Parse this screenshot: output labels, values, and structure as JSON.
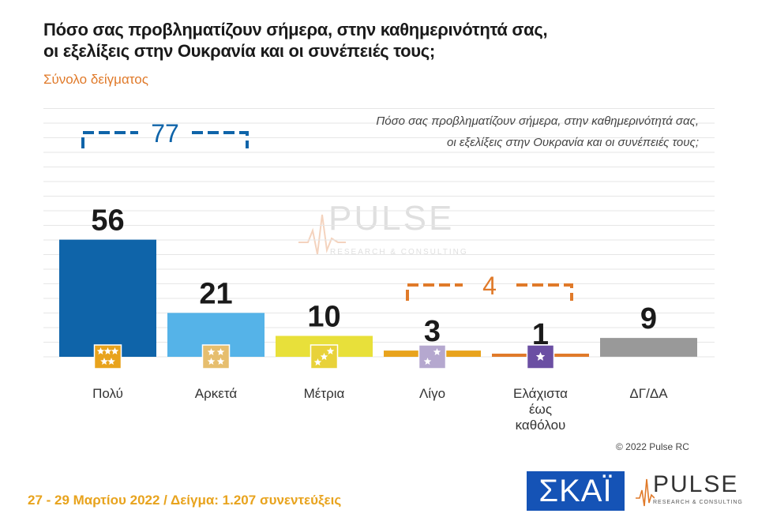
{
  "header": {
    "title_line1": "Πόσο σας προβληματίζουν σήμερα, στην καθημερινότητά σας,",
    "title_line2": "οι εξελίξεις στην Ουκρανία και οι συνέπειές τους;",
    "subtitle": "Σύνολο δείγματος"
  },
  "question": {
    "line1": "Πόσο σας προβληματίζουν σήμερα, στην καθημερινότητά σας,",
    "line2": "οι εξελίξεις στην Ουκρανία και οι συνέπειές τους;"
  },
  "chart_data": {
    "type": "bar",
    "categories": [
      "Πολύ",
      "Αρκετά",
      "Μέτρια",
      "Λίγο",
      "Ελάχιστα έως καθόλου",
      "ΔΓ/ΔΑ"
    ],
    "category_lines": [
      [
        "Πολύ"
      ],
      [
        "Αρκετά"
      ],
      [
        "Μέτρια"
      ],
      [
        "Λίγο"
      ],
      [
        "Ελάχιστα",
        "έως",
        "καθόλου"
      ],
      [
        "ΔΓ/ΔΑ"
      ]
    ],
    "values": [
      56,
      21,
      10,
      3,
      1,
      9
    ],
    "value_labels": [
      "56",
      "21",
      "10",
      "3",
      "1",
      "9"
    ],
    "colors": [
      "#0f64a9",
      "#55b3e8",
      "#e8e03a",
      "#e8a31d",
      "#e07a2a",
      "#999999"
    ],
    "icon_colors": [
      "#e8a31d",
      "#e6be6e",
      "#e8d23a",
      "#b5a8cf",
      "#6b4fa3",
      null
    ],
    "icon_stars": [
      5,
      4,
      3,
      2,
      1,
      0
    ],
    "ylim": [
      0,
      100
    ],
    "grid": true,
    "brackets": [
      {
        "label": "77",
        "from": 0,
        "to": 1,
        "color": "#0f64a9"
      },
      {
        "label": "4",
        "from": 3,
        "to": 4,
        "color": "#e07a2a"
      }
    ]
  },
  "watermark": {
    "word": "PULSE",
    "sub": "RESEARCH & CONSULTING"
  },
  "copyright": "© 2022 Pulse RC",
  "footer": "27 - 29 Μαρτίου 2022  /  Δείγμα:  1.207 συνεντεύξεις",
  "logos": {
    "skai": "ΣΚΑΪ",
    "pulse_word": "PULSE",
    "pulse_sub": "RESEARCH & CONSULTING"
  }
}
